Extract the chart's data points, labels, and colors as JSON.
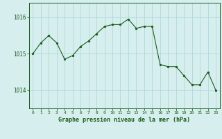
{
  "x": [
    0,
    1,
    2,
    3,
    4,
    5,
    6,
    7,
    8,
    9,
    10,
    11,
    12,
    13,
    14,
    15,
    16,
    17,
    18,
    19,
    20,
    21,
    22,
    23
  ],
  "y": [
    1015.0,
    1015.3,
    1015.5,
    1015.3,
    1014.85,
    1014.95,
    1015.2,
    1015.35,
    1015.55,
    1015.75,
    1015.8,
    1015.8,
    1015.95,
    1015.7,
    1015.75,
    1015.75,
    1014.7,
    1014.65,
    1014.65,
    1014.4,
    1014.15,
    1014.15,
    1014.5,
    1014.0
  ],
  "bg_color": "#d6eeee",
  "line_color": "#1a5c1a",
  "marker_color": "#1a5c1a",
  "grid_color": "#b0d8d8",
  "xlabel": "Graphe pression niveau de la mer (hPa)",
  "xlabel_color": "#1a5c1a",
  "tick_color": "#1a5c1a",
  "yticks": [
    1014,
    1015,
    1016
  ],
  "ylim": [
    1013.5,
    1016.4
  ],
  "xlim": [
    -0.5,
    23.5
  ],
  "xtick_labels": [
    "0",
    "1",
    "2",
    "3",
    "4",
    "5",
    "6",
    "7",
    "8",
    "9",
    "10",
    "11",
    "12",
    "13",
    "14",
    "15",
    "16",
    "17",
    "18",
    "19",
    "20",
    "21",
    "22",
    "23"
  ]
}
